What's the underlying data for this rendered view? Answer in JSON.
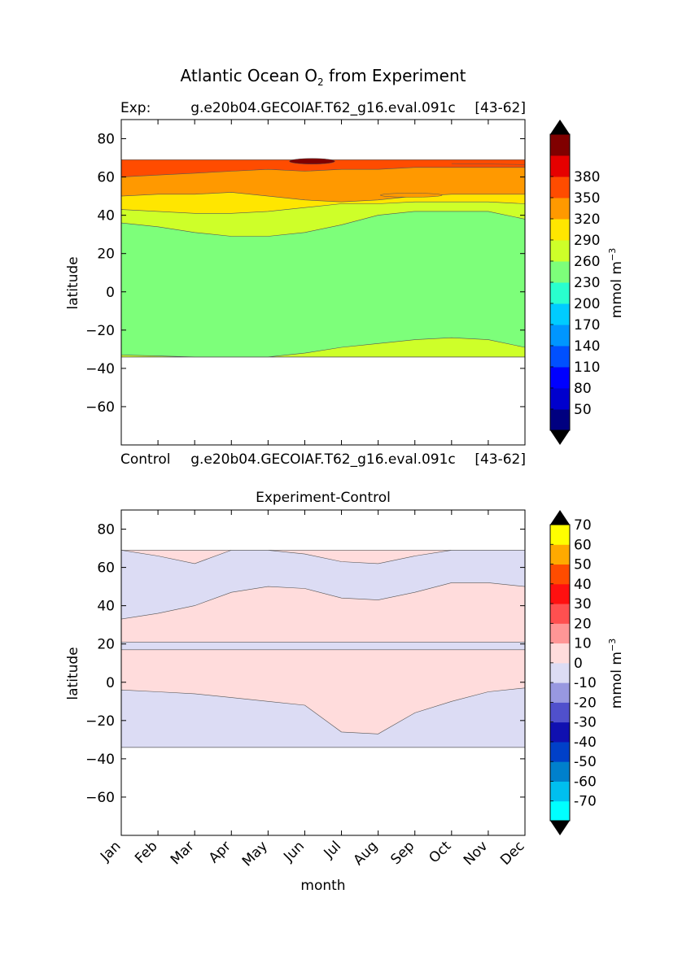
{
  "figure": {
    "title_main": "Atlantic Ocean O",
    "title_sub": "2",
    "title_rest": " from Experiment"
  },
  "colors": {
    "top_levels": [
      "#000080",
      "#0000cd",
      "#0000ff",
      "#0050ff",
      "#0096ff",
      "#00ccff",
      "#29ffce",
      "#7dff7a",
      "#ceff29",
      "#ffe600",
      "#ff9900",
      "#ff4c00",
      "#e60000",
      "#800000"
    ],
    "diff_levels": [
      "#00ffff",
      "#00bfef",
      "#0080cc",
      "#0040c8",
      "#1010b0",
      "#5050cc",
      "#9898e0",
      "#dcdcf4",
      "#ffdcdc",
      "#ff9696",
      "#ff5050",
      "#ff1010",
      "#ff4c00",
      "#ffaa00",
      "#ffff00"
    ]
  },
  "chart_data": [
    {
      "type": "heatmap",
      "panel": "experiment",
      "title_left": "Exp:",
      "title_center": "g.e20b04.GECOIAF.T62_g16.eval.091c",
      "title_right": "[43-62]",
      "xlabel": "",
      "ylabel": "latitude",
      "x": [
        "Jan",
        "Feb",
        "Mar",
        "Apr",
        "May",
        "Jun",
        "Jul",
        "Aug",
        "Sep",
        "Oct",
        "Nov",
        "Dec"
      ],
      "ylim": [
        -80,
        90
      ],
      "yticks": [
        "80",
        "60",
        "40",
        "20",
        "0",
        "−20",
        "−40",
        "−60"
      ],
      "ytick_values": [
        80,
        60,
        40,
        20,
        0,
        -20,
        -40,
        -60
      ],
      "data_lat_range": [
        -34,
        69
      ],
      "contour_boundaries": {
        "south_230_200": [
          -33,
          -33.5,
          -34,
          -34,
          -34,
          -32,
          -29,
          -27,
          -25,
          -24,
          -25,
          -29
        ],
        "north_200_230": [
          36,
          34,
          31,
          29,
          29,
          31,
          35,
          40,
          42,
          42,
          42,
          38
        ],
        "north_230_260": [
          43,
          42,
          41,
          41,
          42,
          44,
          46,
          46,
          47,
          47,
          47,
          46
        ],
        "north_260_290": [
          50,
          51,
          51,
          52,
          50,
          48,
          47,
          48,
          50,
          51,
          51,
          51
        ],
        "north_290_320": [
          60,
          61,
          62,
          63,
          64,
          63,
          64,
          64,
          65,
          65,
          65,
          65
        ]
      },
      "colorbar": {
        "label": "mmol m",
        "label_exp": "−3",
        "ticks": [
          "50",
          "80",
          "110",
          "140",
          "170",
          "200",
          "230",
          "260",
          "290",
          "320",
          "350",
          "380"
        ],
        "levels": [
          20,
          50,
          80,
          110,
          140,
          170,
          200,
          230,
          260,
          290,
          320,
          350,
          380,
          410
        ]
      }
    },
    {
      "type": "heatmap",
      "panel": "difference",
      "title": "Experiment-Control",
      "top_left": "Control",
      "top_center": "g.e20b04.GECOIAF.T62_g16.eval.091c",
      "top_right": "[43-62]",
      "xlabel": "month",
      "ylabel": "latitude",
      "x": [
        "Jan",
        "Feb",
        "Mar",
        "Apr",
        "May",
        "Jun",
        "Jul",
        "Aug",
        "Sep",
        "Oct",
        "Nov",
        "Dec"
      ],
      "ylim": [
        -80,
        90
      ],
      "yticks": [
        "80",
        "60",
        "40",
        "20",
        "0",
        "−20",
        "−40",
        "−60"
      ],
      "ytick_values": [
        80,
        60,
        40,
        20,
        0,
        -20,
        -40,
        -60
      ],
      "data_lat_range": [
        -34,
        69
      ],
      "contour_boundaries": {
        "north_neg_lower": [
          33,
          36,
          40,
          47,
          50,
          49,
          44,
          43,
          47,
          52,
          52,
          50
        ],
        "north_neg_upper": [
          69,
          66,
          62,
          69,
          69,
          67,
          63,
          62,
          66,
          69,
          69,
          69
        ],
        "south_neg_upper": [
          -4,
          -5,
          -6,
          -8,
          -10,
          -12,
          -26,
          -27,
          -16,
          -10,
          -5,
          -3
        ]
      },
      "colorbar": {
        "label": "mmol m",
        "label_exp": "−3",
        "ticks": [
          "-70",
          "-60",
          "-50",
          "-40",
          "-30",
          "-20",
          "-10",
          "0",
          "10",
          "20",
          "30",
          "40",
          "50",
          "60",
          "70"
        ],
        "levels": [
          -80,
          -70,
          -60,
          -50,
          -40,
          -30,
          -20,
          -10,
          0,
          10,
          20,
          30,
          40,
          50,
          60,
          70,
          80
        ]
      }
    }
  ]
}
